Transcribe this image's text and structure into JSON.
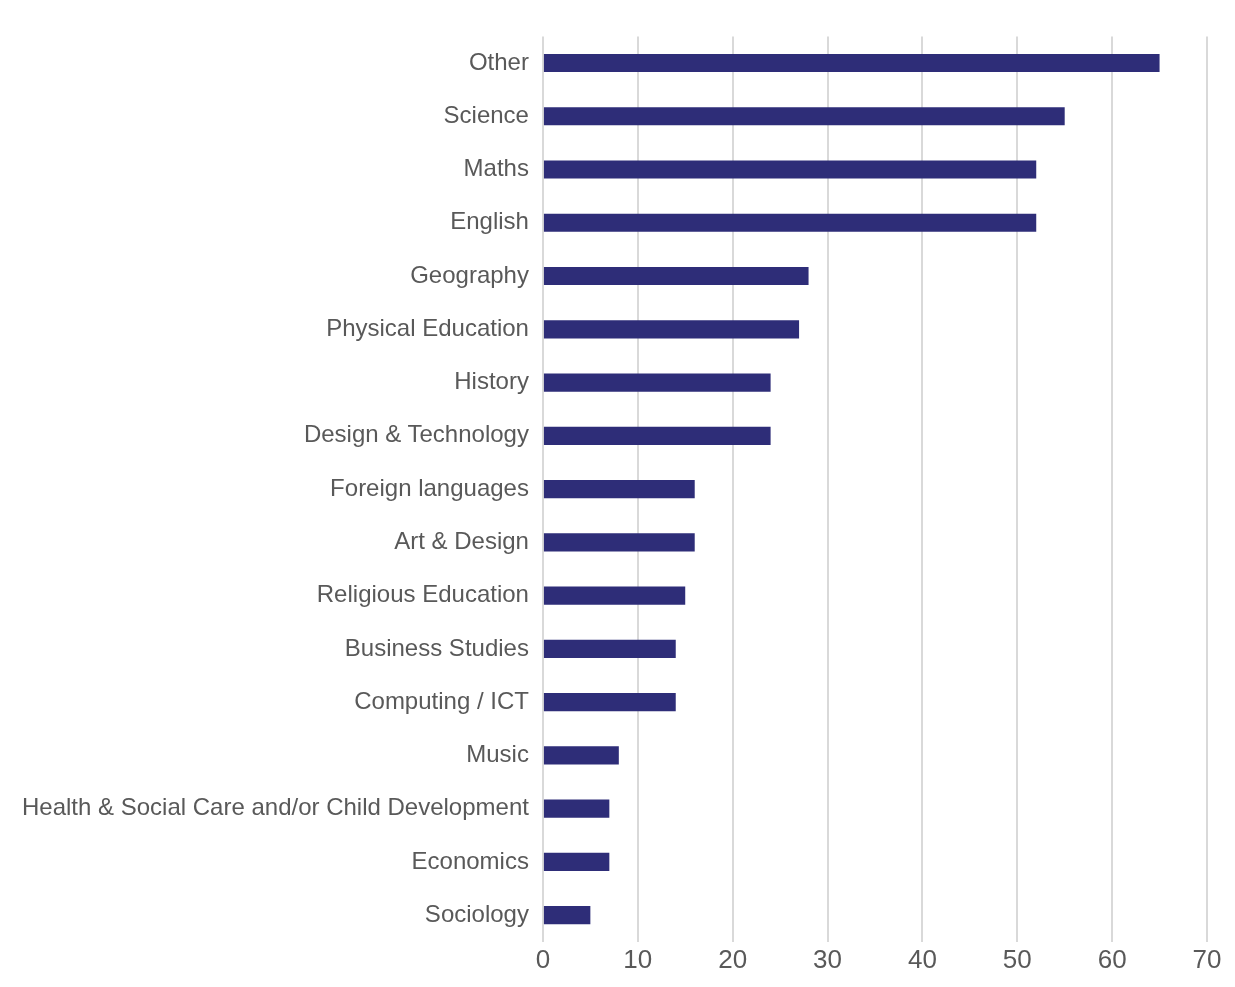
{
  "chart_data": {
    "type": "bar",
    "orientation": "horizontal",
    "categories": [
      "Other",
      "Science",
      "Maths",
      "English",
      "Geography",
      "Physical Education",
      "History",
      "Design & Technology",
      "Foreign languages",
      "Art & Design",
      "Religious Education",
      "Business Studies",
      "Computing / ICT",
      "Music",
      "Health & Social Care and/or Child Development",
      "Economics",
      "Sociology"
    ],
    "values": [
      65,
      55,
      52,
      52,
      28,
      27,
      24,
      24,
      16,
      16,
      15,
      14,
      14,
      8,
      7,
      7,
      5
    ],
    "color": "#2e2d78",
    "xlim": [
      0,
      70
    ],
    "xticks": [
      0,
      10,
      20,
      30,
      40,
      50,
      60,
      70
    ],
    "grid": "x",
    "legend": false
  }
}
